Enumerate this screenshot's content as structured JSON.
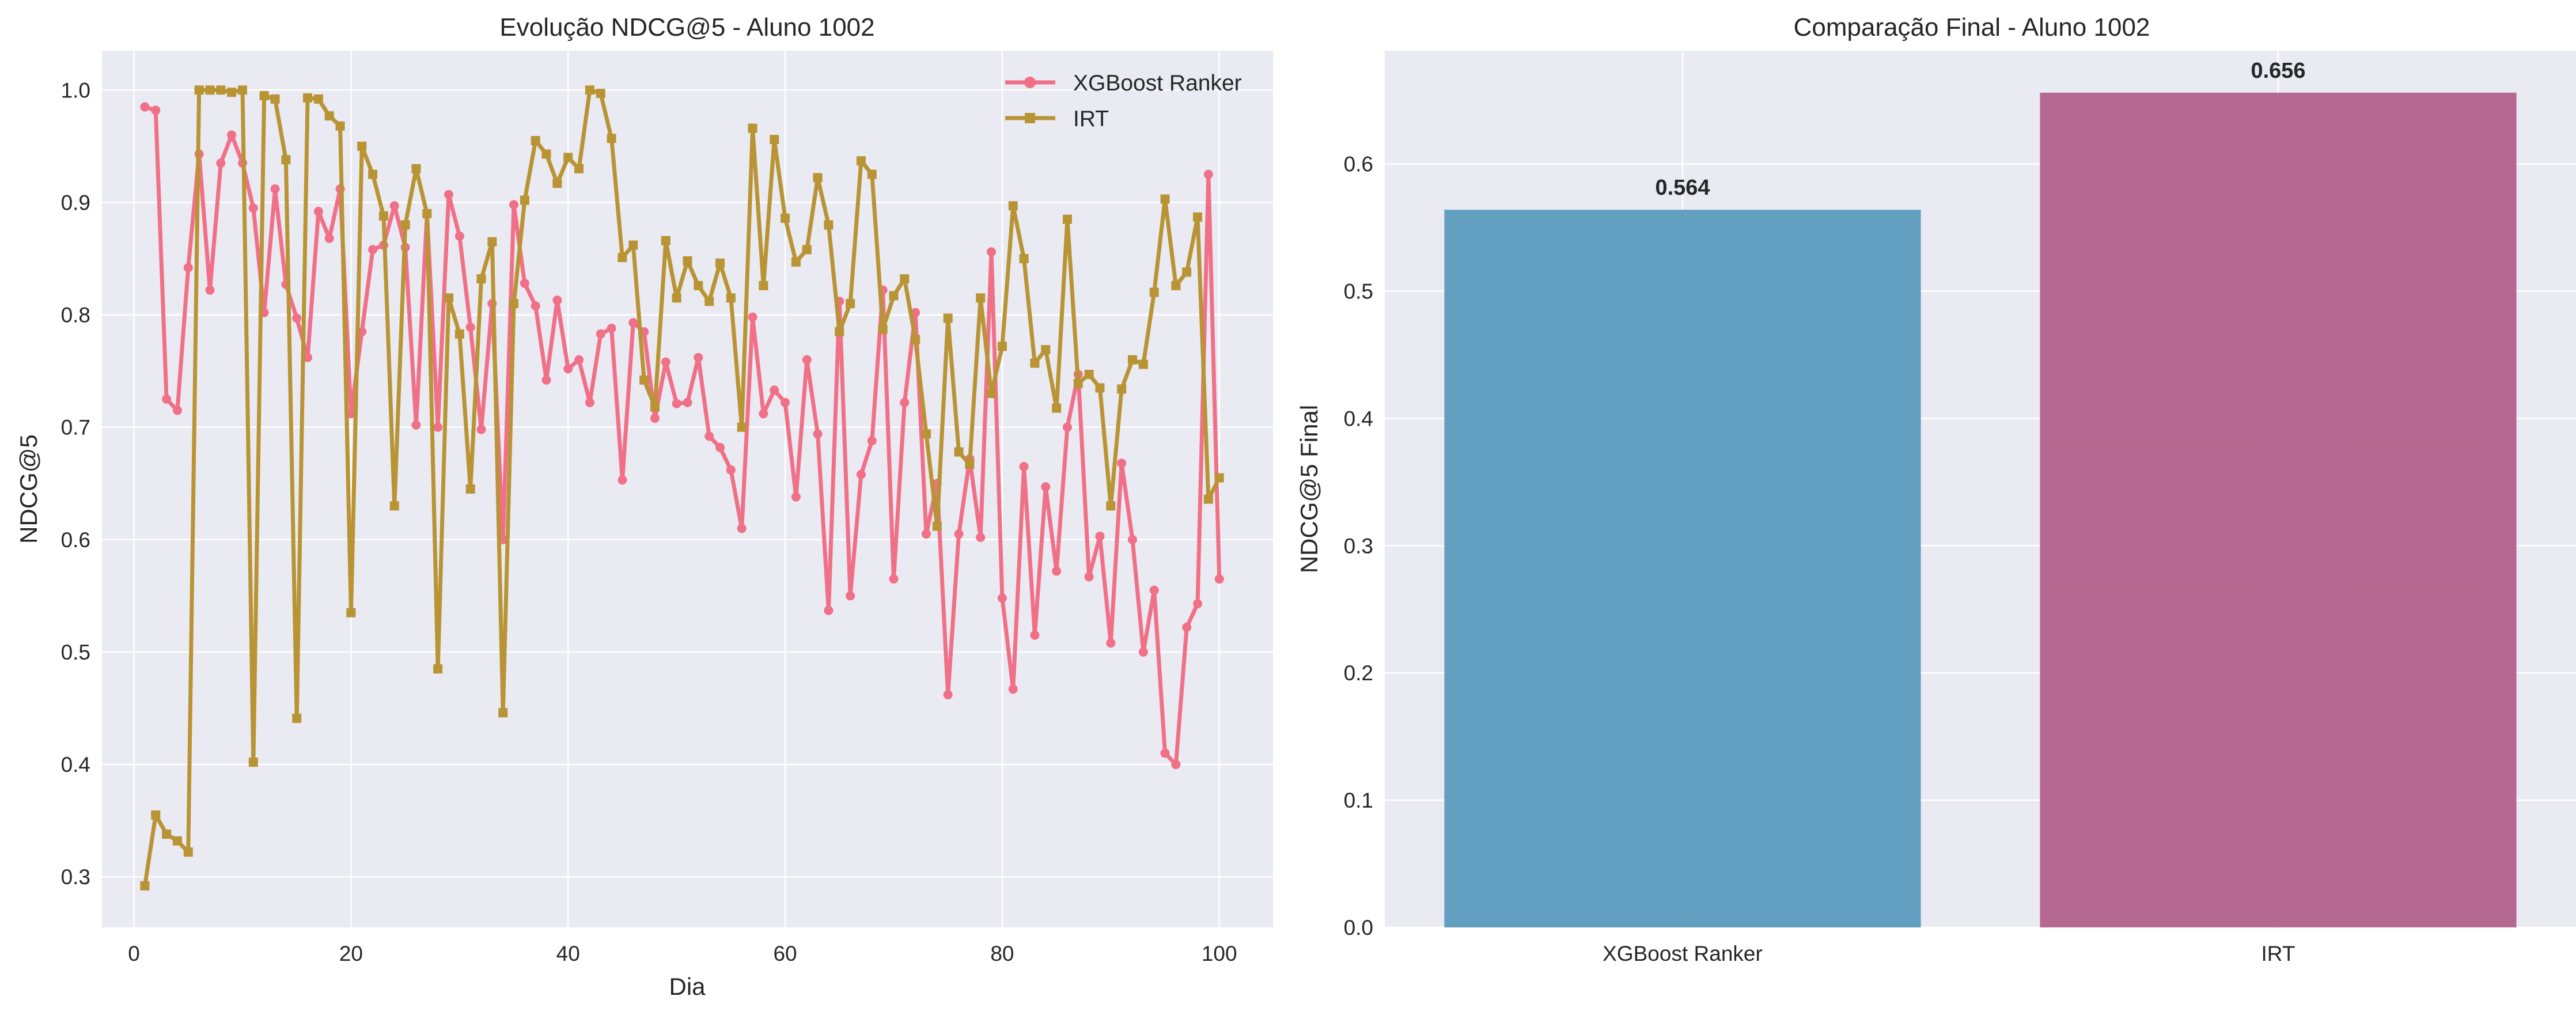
{
  "colors": {
    "background": "#ffffff",
    "axes_face": "#eaeaf2",
    "grid": "#ffffff",
    "xgboost": "#f07088",
    "irt": "#b89434",
    "bar_xgboost": "#5b9bbd",
    "bar_irt": "#b2618b"
  },
  "chart_data": [
    {
      "type": "line",
      "title": "Evolução NDCG@5 - Aluno 1002",
      "xlabel": "Dia",
      "ylabel": "NDCG@5",
      "xlim": [
        -2.95,
        104.95
      ],
      "ylim": [
        0.255,
        1.035
      ],
      "xticks": [
        0,
        20,
        40,
        60,
        80,
        100
      ],
      "yticks": [
        0.3,
        0.4,
        0.5,
        0.6,
        0.7,
        0.8,
        0.9,
        1.0
      ],
      "xtick_labels": [
        "0",
        "20",
        "40",
        "60",
        "80",
        "100"
      ],
      "ytick_labels": [
        "0.3",
        "0.4",
        "0.5",
        "0.6",
        "0.7",
        "0.8",
        "0.9",
        "1.0"
      ],
      "grid": true,
      "legend_position": "top-right",
      "x": [
        1,
        2,
        3,
        4,
        5,
        6,
        7,
        8,
        9,
        10,
        11,
        12,
        13,
        14,
        15,
        16,
        17,
        18,
        19,
        20,
        21,
        22,
        23,
        24,
        25,
        26,
        27,
        28,
        29,
        30,
        31,
        32,
        33,
        34,
        35,
        36,
        37,
        38,
        39,
        40,
        41,
        42,
        43,
        44,
        45,
        46,
        47,
        48,
        49,
        50,
        51,
        52,
        53,
        54,
        55,
        56,
        57,
        58,
        59,
        60,
        61,
        62,
        63,
        64,
        65,
        66,
        67,
        68,
        69,
        70,
        71,
        72,
        73,
        74,
        75,
        76,
        77,
        78,
        79,
        80,
        81,
        82,
        83,
        84,
        85,
        86,
        87,
        88,
        89,
        90,
        91,
        92,
        93,
        94,
        95,
        96,
        97,
        98,
        99,
        100
      ],
      "series": [
        {
          "name": "XGBoost Ranker",
          "marker": "circle",
          "values": [
            0.985,
            0.982,
            0.725,
            0.715,
            0.842,
            0.943,
            0.822,
            0.935,
            0.96,
            0.935,
            0.895,
            0.802,
            0.912,
            0.827,
            0.797,
            0.762,
            0.892,
            0.868,
            0.912,
            0.712,
            0.785,
            0.858,
            0.862,
            0.897,
            0.86,
            0.702,
            0.89,
            0.7,
            0.907,
            0.87,
            0.789,
            0.698,
            0.81,
            0.6,
            0.898,
            0.828,
            0.808,
            0.742,
            0.813,
            0.752,
            0.76,
            0.722,
            0.783,
            0.788,
            0.653,
            0.793,
            0.785,
            0.708,
            0.758,
            0.721,
            0.722,
            0.762,
            0.692,
            0.682,
            0.662,
            0.61,
            0.798,
            0.712,
            0.733,
            0.722,
            0.638,
            0.76,
            0.694,
            0.537,
            0.812,
            0.55,
            0.658,
            0.688,
            0.822,
            0.565,
            0.722,
            0.802,
            0.605,
            0.65,
            0.462,
            0.605,
            0.672,
            0.602,
            0.856,
            0.548,
            0.467,
            0.665,
            0.515,
            0.647,
            0.572,
            0.7,
            0.747,
            0.567,
            0.603,
            0.508,
            0.668,
            0.6,
            0.5,
            0.555,
            0.41,
            0.4,
            0.522,
            0.543,
            0.925,
            0.565
          ]
        },
        {
          "name": "IRT",
          "marker": "square",
          "values": [
            0.292,
            0.355,
            0.338,
            0.332,
            0.322,
            1.0,
            1.0,
            1.0,
            0.998,
            1.0,
            0.402,
            0.995,
            0.992,
            0.938,
            0.441,
            0.993,
            0.992,
            0.977,
            0.968,
            0.535,
            0.95,
            0.925,
            0.888,
            0.63,
            0.88,
            0.93,
            0.89,
            0.485,
            0.815,
            0.783,
            0.645,
            0.832,
            0.865,
            0.446,
            0.81,
            0.902,
            0.955,
            0.943,
            0.917,
            0.94,
            0.93,
            1.0,
            0.997,
            0.957,
            0.851,
            0.862,
            0.742,
            0.718,
            0.866,
            0.815,
            0.848,
            0.826,
            0.812,
            0.846,
            0.815,
            0.7,
            0.966,
            0.826,
            0.956,
            0.886,
            0.847,
            0.858,
            0.922,
            0.88,
            0.785,
            0.81,
            0.937,
            0.925,
            0.787,
            0.817,
            0.832,
            0.778,
            0.694,
            0.612,
            0.797,
            0.678,
            0.667,
            0.815,
            0.73,
            0.772,
            0.897,
            0.85,
            0.757,
            0.769,
            0.717,
            0.885,
            0.739,
            0.747,
            0.735,
            0.63,
            0.734,
            0.76,
            0.756,
            0.82,
            0.903,
            0.826,
            0.838,
            0.887,
            0.636,
            0.655
          ]
        }
      ]
    },
    {
      "type": "bar",
      "title": "Comparação Final - Aluno 1002",
      "xlabel": "",
      "ylabel": "NDCG@5 Final",
      "categories": [
        "XGBoost Ranker",
        "IRT"
      ],
      "values": [
        0.564,
        0.656
      ],
      "value_labels": [
        "0.564",
        "0.656"
      ],
      "ylim": [
        0,
        0.689
      ],
      "yticks": [
        0.0,
        0.1,
        0.2,
        0.3,
        0.4,
        0.5,
        0.6
      ],
      "ytick_labels": [
        "0.0",
        "0.1",
        "0.2",
        "0.3",
        "0.4",
        "0.5",
        "0.6"
      ],
      "grid": true
    }
  ]
}
